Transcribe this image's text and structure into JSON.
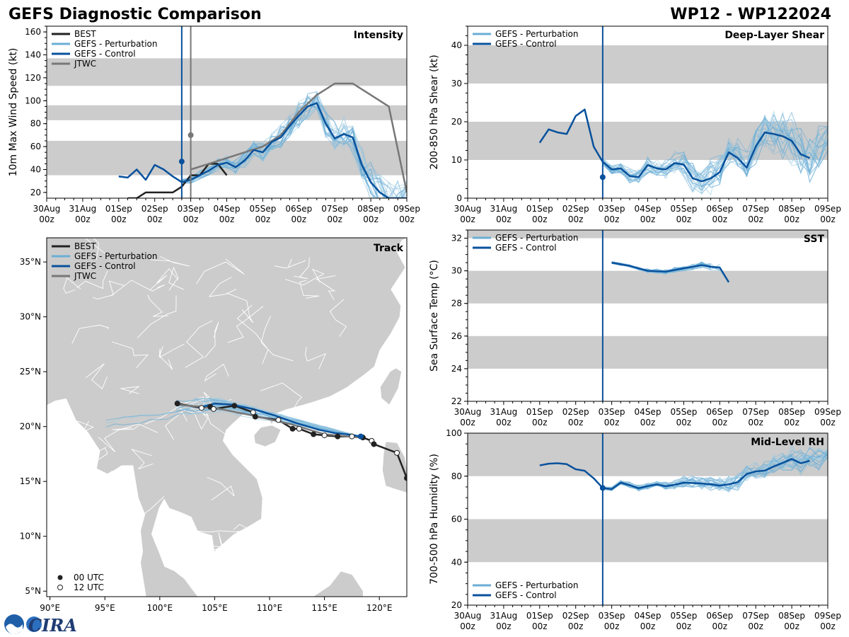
{
  "header": {
    "title": "GEFS Diagnostic Comparison",
    "storm_id": "WP12 - WP122024"
  },
  "colors": {
    "best": "#222222",
    "perturbation": "#6baed6",
    "control": "#08519c",
    "jtwc": "#777777",
    "band": "#cccccc",
    "land": "#cccccc"
  },
  "time_axis": {
    "ticks": [
      "30Aug 00z",
      "31Aug 00z",
      "01Sep 00z",
      "02Sep 00z",
      "03Sep 00z",
      "04Sep 00z",
      "05Sep 00z",
      "06Sep 00z",
      "07Sep 00z",
      "08Sep 00z",
      "09Sep 00z"
    ],
    "init_day": 3.75,
    "jtwc_init_day": 4.0
  },
  "legend_labels": {
    "best": "BEST",
    "perturbation": "GEFS - Perturbation",
    "control": "GEFS - Control",
    "jtwc": "JTWC",
    "utc00": "00 UTC",
    "utc12": "12 UTC"
  },
  "logo": {
    "text": "CIRA"
  },
  "chart_data": [
    {
      "id": "intensity",
      "type": "line",
      "title": "Intensity",
      "ylabel": "10m Max Wind Speed (kt)",
      "ylim": [
        15,
        165
      ],
      "yticks": [
        20,
        40,
        60,
        80,
        100,
        120,
        140,
        160
      ],
      "bands": [
        [
          35,
          65
        ],
        [
          83,
          96
        ],
        [
          113,
          137
        ]
      ],
      "series": [
        {
          "name": "BEST",
          "x": [
            2.25,
            2.5,
            2.75,
            3,
            3.25,
            3.5,
            3.75,
            4,
            4.25,
            4.5,
            4.75,
            5
          ],
          "y": [
            15,
            15,
            20,
            20,
            20,
            20,
            25,
            35,
            35,
            45,
            45,
            35
          ]
        },
        {
          "name": "JTWC",
          "x": [
            4,
            4.5,
            5,
            5.5,
            6,
            6.5,
            7,
            7.5,
            8,
            8.5,
            9,
            9.5,
            10
          ],
          "y": [
            40,
            45,
            50,
            55,
            60,
            70,
            90,
            105,
            115,
            115,
            105,
            95,
            20
          ]
        },
        {
          "name": "GEFS - Control",
          "x": [
            2,
            2.25,
            2.5,
            2.75,
            3,
            3.25,
            3.5,
            3.75,
            4,
            4.25,
            4.5,
            4.75,
            5,
            5.25,
            5.5,
            5.75,
            6,
            6.25,
            6.5,
            6.75,
            7,
            7.25,
            7.5,
            7.75,
            8,
            8.25,
            8.5,
            8.75,
            9,
            9.25,
            9.5,
            9.75,
            10
          ],
          "y": [
            34,
            33,
            40,
            31,
            44,
            40,
            34,
            29,
            31,
            35,
            39,
            44,
            46,
            42,
            48,
            57,
            55,
            64,
            68,
            78,
            87,
            95,
            98,
            80,
            67,
            71,
            68,
            44,
            29,
            20,
            15,
            15,
            15
          ]
        }
      ]
    },
    {
      "id": "shear",
      "type": "line",
      "title": "Deep-Layer Shear",
      "ylabel": "200-850 hPa Shear (kt)",
      "ylim": [
        0,
        45
      ],
      "yticks": [
        0,
        10,
        20,
        30,
        40
      ],
      "bands": [
        [
          10,
          20
        ],
        [
          30,
          40
        ]
      ],
      "series": [
        {
          "name": "GEFS - Control",
          "x": [
            2,
            2.25,
            2.5,
            2.75,
            3,
            3.25,
            3.5,
            3.75,
            4,
            4.25,
            4.5,
            4.75,
            5,
            5.25,
            5.5,
            5.75,
            6,
            6.25,
            6.5,
            6.75,
            7,
            7.25,
            7.5,
            7.75,
            8,
            8.25,
            8.5,
            8.75,
            9,
            9.25,
            9.5,
            9.75
          ],
          "y": [
            14.5,
            18,
            17.2,
            16.8,
            21.5,
            23.2,
            13.5,
            9.5,
            7.5,
            7.8,
            5.8,
            5.5,
            8.7,
            7.8,
            7.5,
            9.2,
            8.8,
            5.2,
            4.4,
            5.2,
            6.8,
            12,
            10.5,
            8,
            13.5,
            17.2,
            16.8,
            16.2,
            15,
            11.5,
            10.5,
            null
          ]
        }
      ]
    },
    {
      "id": "track",
      "type": "scatter",
      "title": "Track",
      "lon_ticks": [
        "90°E",
        "95°E",
        "100°E",
        "105°E",
        "110°E",
        "115°E",
        "120°E"
      ],
      "lat_ticks": [
        "5°N",
        "10°N",
        "15°N",
        "20°N",
        "25°N",
        "30°N",
        "35°N"
      ],
      "lon_range": [
        89.7,
        122.5
      ],
      "lat_range": [
        4.5,
        37.2
      ],
      "series": [
        {
          "name": "BEST",
          "lon": [
            101.6,
            103.8,
            104.6,
            104.9,
            106.8,
            108.5,
            108.7,
            110.8,
            112.1,
            112.7,
            114,
            115,
            116.2,
            117.5,
            118.5,
            119.3,
            119.5,
            121.6,
            122.5
          ],
          "lat": [
            22.1,
            21.7,
            21.8,
            21.6,
            21.9,
            21.3,
            20.9,
            20.6,
            19.8,
            19.8,
            19.3,
            19.2,
            19.1,
            19.1,
            19.0,
            18.7,
            18.4,
            17.6,
            15.3
          ]
        },
        {
          "name": "JTWC",
          "lon": [
            101.6,
            105,
            108.5,
            112,
            115,
            118.2
          ],
          "lat": [
            22.0,
            21.7,
            21.0,
            20.2,
            19.3,
            19.0
          ]
        },
        {
          "name": "GEFS - Control",
          "lon": [
            118.3,
            117,
            116,
            114.5,
            112.5,
            110.5,
            108.5,
            106.5,
            105,
            103.5
          ],
          "lat": [
            19.1,
            19.3,
            19.4,
            19.7,
            20.3,
            21.0,
            21.6,
            22.0,
            22.1,
            21.7
          ]
        }
      ]
    },
    {
      "id": "sst",
      "type": "line",
      "title": "SST",
      "ylabel": "Sea Surface Temp (°C)",
      "ylim": [
        22,
        32.5
      ],
      "yticks": [
        22,
        24,
        26,
        28,
        30,
        32
      ],
      "bands": [
        [
          24,
          26
        ],
        [
          28,
          30
        ],
        [
          32,
          34
        ]
      ],
      "series": [
        {
          "name": "GEFS - Control",
          "x": [
            4,
            4.25,
            4.5,
            4.75,
            5,
            5.25,
            5.5,
            5.75,
            6,
            6.25,
            6.5,
            6.75,
            7,
            7.25,
            7.5,
            7.75
          ],
          "y": [
            30.5,
            30.4,
            30.3,
            30.15,
            30.0,
            29.97,
            29.95,
            30.05,
            30.15,
            30.25,
            30.35,
            30.25,
            30.2,
            29.3,
            null,
            null
          ]
        }
      ]
    },
    {
      "id": "rh",
      "type": "line",
      "title": "Mid-Level RH",
      "ylabel": "700-500 hPa Humidity (%)",
      "ylim": [
        20,
        100
      ],
      "yticks": [
        20,
        40,
        60,
        80,
        100
      ],
      "bands": [
        [
          40,
          60
        ],
        [
          80,
          100
        ]
      ],
      "series": [
        {
          "name": "GEFS - Control",
          "x": [
            2,
            2.25,
            2.5,
            2.75,
            3,
            3.25,
            3.5,
            3.75,
            4,
            4.25,
            4.5,
            4.75,
            5,
            5.25,
            5.5,
            5.75,
            6,
            6.25,
            6.5,
            6.75,
            7,
            7.25,
            7.5,
            7.75,
            8,
            8.25,
            8.5,
            8.75,
            9,
            9.25,
            9.5,
            9.75
          ],
          "y": [
            85,
            85.8,
            86,
            85.6,
            83.2,
            82.5,
            79,
            74.5,
            74,
            77,
            75.8,
            74.4,
            75.4,
            76.2,
            75.3,
            76,
            77,
            76.8,
            76.6,
            76.2,
            75.6,
            76.2,
            77.2,
            81,
            82.2,
            82.6,
            84.5,
            86.2,
            88,
            86,
            87.2,
            null
          ]
        }
      ]
    }
  ]
}
